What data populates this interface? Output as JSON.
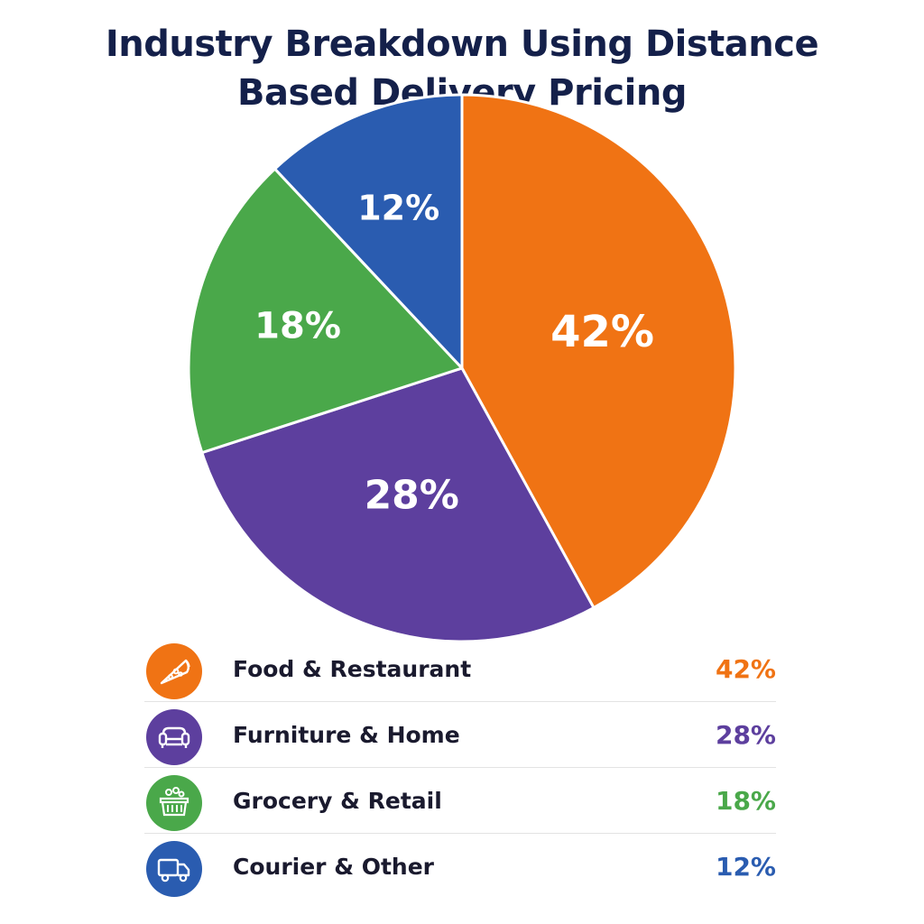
{
  "title": {
    "line1": "Industry Breakdown Using Distance",
    "line2": "Based Delivery Pricing"
  },
  "chart_data": {
    "type": "pie",
    "title": "Industry Breakdown Using Distance Based Delivery Pricing",
    "categories": [
      "Food & Restaurant",
      "Furniture & Home",
      "Grocery & Retail",
      "Courier & Other"
    ],
    "values": [
      42,
      28,
      18,
      12
    ],
    "value_labels": [
      "42%",
      "28%",
      "18%",
      "12%"
    ],
    "colors": [
      "#f07314",
      "#5d3f9e",
      "#4aa84a",
      "#2a5cb0"
    ],
    "legend_placement": "bottom",
    "start": "12 o'clock",
    "direction": "clockwise"
  },
  "legend": [
    {
      "label": "Food & Restaurant",
      "value": "42%",
      "color": "#f07314",
      "icon": "pizza-icon"
    },
    {
      "label": "Furniture & Home",
      "value": "28%",
      "color": "#5d3f9e",
      "icon": "sofa-icon"
    },
    {
      "label": "Grocery & Retail",
      "value": "18%",
      "color": "#4aa84a",
      "icon": "basket-icon"
    },
    {
      "label": "Courier & Other",
      "value": "12%",
      "color": "#2a5cb0",
      "icon": "truck-icon"
    }
  ]
}
